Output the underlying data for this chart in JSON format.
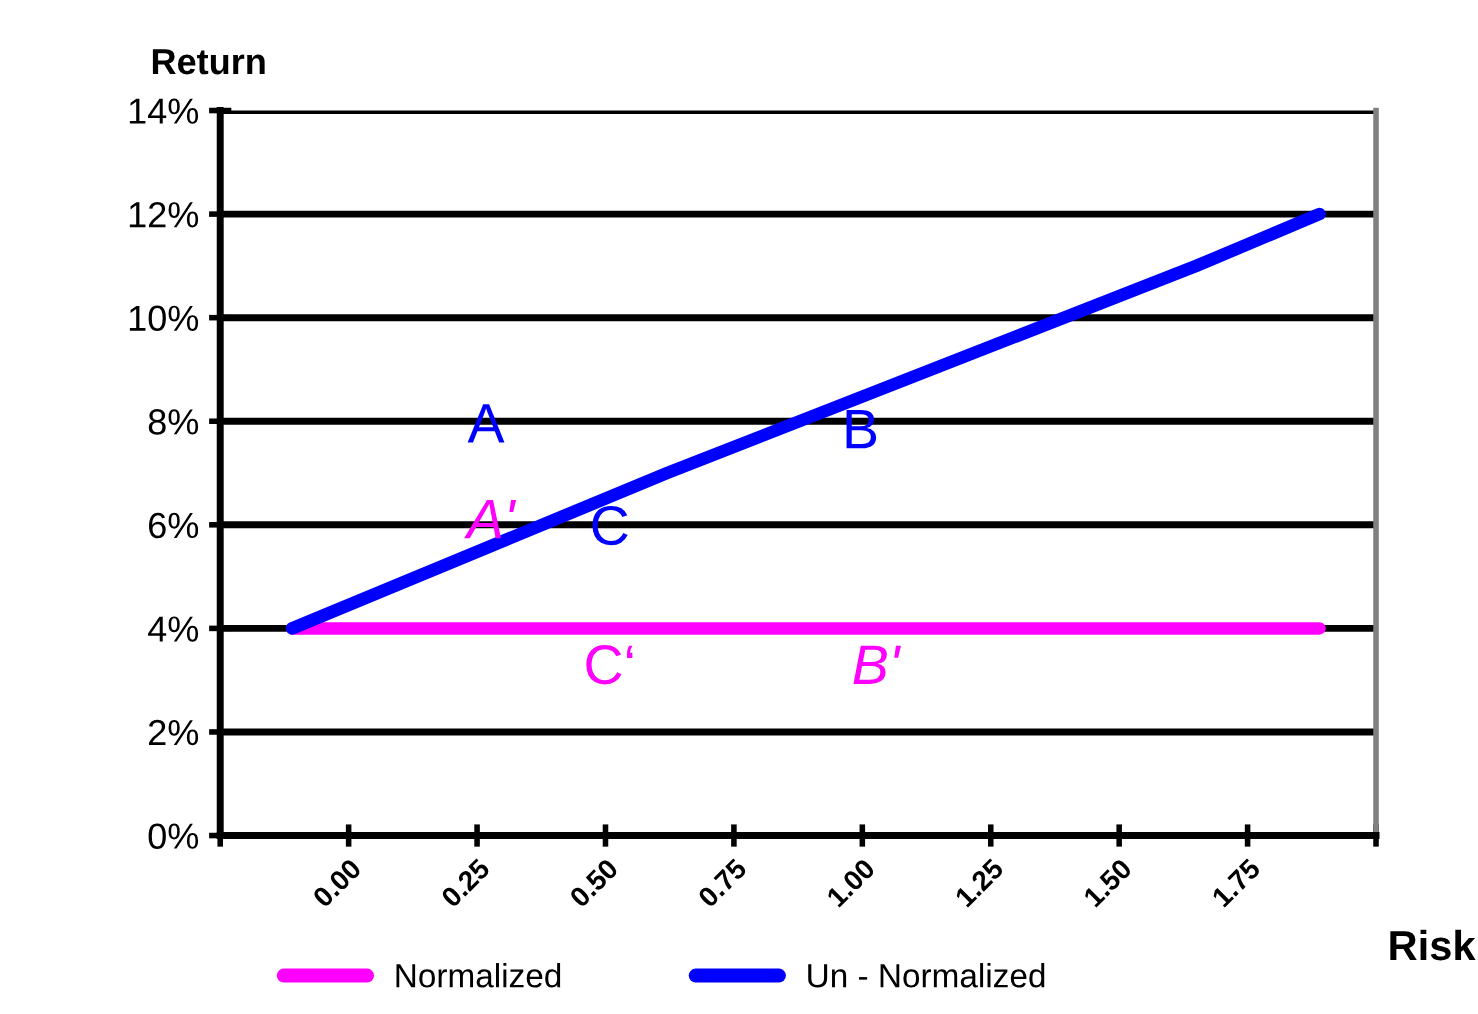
{
  "chart_data": {
    "type": "line",
    "xlabel": "Risk",
    "ylabel": "Return",
    "series": [
      {
        "name": "Normalized",
        "color": "#ff00ff",
        "x": [
          -0.11,
          1.89
        ],
        "values": [
          4.0,
          4.0
        ]
      },
      {
        "name": "Un - Normalized",
        "color": "#0000ff",
        "x": [
          -0.11,
          0.62,
          1.65,
          1.89
        ],
        "values": [
          4.0,
          7.0,
          11.0,
          12.0
        ]
      }
    ],
    "xlim": [
      -0.25,
      2.0
    ],
    "xticks": [
      {
        "value": -0.25,
        "label": null
      },
      {
        "value": 0,
        "label": "0.00"
      },
      {
        "value": 0.25,
        "label": "0.25"
      },
      {
        "value": 0.5,
        "label": "0.50"
      },
      {
        "value": 0.75,
        "label": "0.75"
      },
      {
        "value": 1.0,
        "label": "1.00"
      },
      {
        "value": 1.25,
        "label": "1.25"
      },
      {
        "value": 1.5,
        "label": "1.50"
      },
      {
        "value": 1.75,
        "label": "1.75"
      },
      {
        "value": 2.0,
        "label": null
      }
    ],
    "ylim": [
      0,
      14
    ],
    "yticks": [
      {
        "value": 0,
        "label": "0%"
      },
      {
        "value": 2,
        "label": "2%"
      },
      {
        "value": 4,
        "label": "4%"
      },
      {
        "value": 6,
        "label": "6%"
      },
      {
        "value": 8,
        "label": "8%"
      },
      {
        "value": 10,
        "label": "10%"
      },
      {
        "value": 12,
        "label": "12%"
      },
      {
        "value": 14,
        "label": "14%"
      }
    ],
    "annotations": [
      "A",
      "B",
      "C",
      "A'",
      "C‘",
      "B'"
    ],
    "grid": "y",
    "legend": "bottom",
    "marker": "none",
    "line_style": "solid"
  }
}
